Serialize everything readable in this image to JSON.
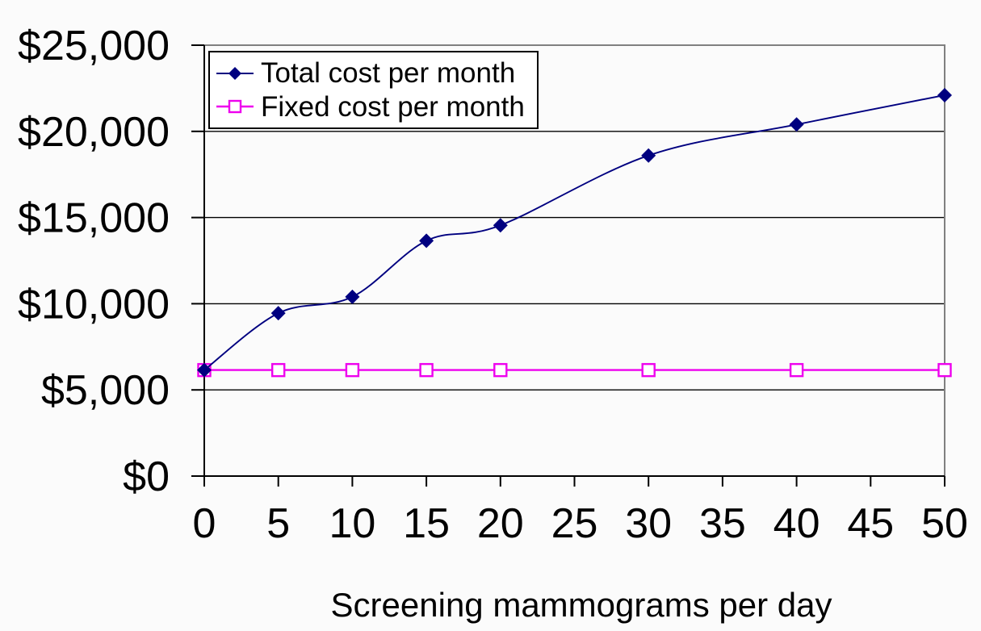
{
  "canvas": {
    "background": "#fbfbfb",
    "plot_background": "#fbfbfb"
  },
  "chart_data": {
    "type": "line",
    "title": "",
    "xlabel": "Screening mammograms per day",
    "ylabel": "",
    "x": [
      0,
      5,
      10,
      15,
      20,
      30,
      40,
      50
    ],
    "series": [
      {
        "name": "Total cost per month",
        "values": [
          6150,
          9450,
          10400,
          13650,
          14550,
          18600,
          20400,
          22100
        ],
        "color": "#000080",
        "marker": "diamond",
        "smooth": true
      },
      {
        "name": "Fixed cost per month",
        "values": [
          6150,
          6150,
          6150,
          6150,
          6150,
          6150,
          6150,
          6150
        ],
        "color": "#ee00ee",
        "marker": "open-square",
        "smooth": false
      }
    ],
    "xlim": [
      0,
      50
    ],
    "ylim": [
      0,
      25000
    ],
    "x_ticks": [
      "0",
      "5",
      "10",
      "15",
      "20",
      "25",
      "30",
      "35",
      "40",
      "45",
      "50"
    ],
    "x_tick_values": [
      0,
      5,
      10,
      15,
      20,
      25,
      30,
      35,
      40,
      45,
      50
    ],
    "y_ticks": [
      "$0",
      "$5,000",
      "$10,000",
      "$15,000",
      "$20,000",
      "$25,000"
    ],
    "y_tick_values": [
      0,
      5000,
      10000,
      15000,
      20000,
      25000
    ],
    "grid": true,
    "gridline_color": "#000000",
    "plot_border_color": "#808080",
    "legend_position": "top-left"
  }
}
